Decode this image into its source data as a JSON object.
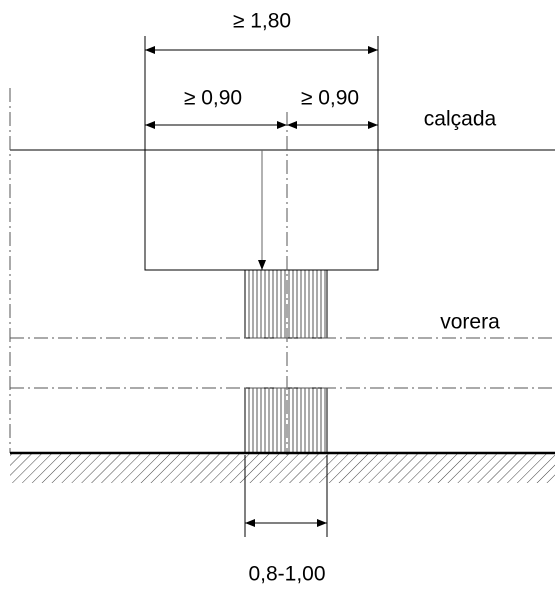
{
  "dimensions": {
    "total": "≥ 1,80",
    "left": "≥ 0,90",
    "right": "≥ 0,90",
    "tactile": "0,8-1,00"
  },
  "labels": {
    "sidewalk": "calçada",
    "curb": "vorera"
  }
}
